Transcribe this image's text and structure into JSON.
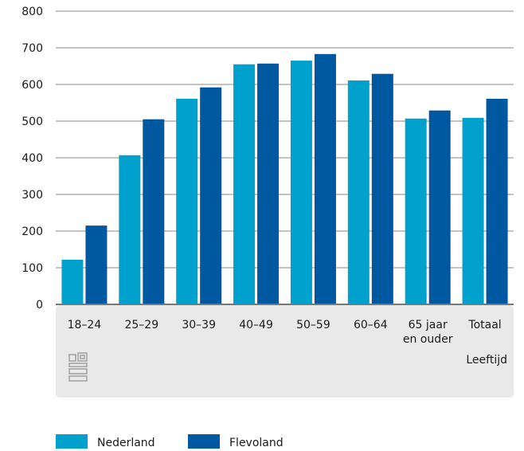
{
  "chart_data": {
    "type": "bar",
    "categories": [
      [
        "18–24"
      ],
      [
        "25–29"
      ],
      [
        "30–39"
      ],
      [
        "40–49"
      ],
      [
        "50–59"
      ],
      [
        "60–64"
      ],
      [
        "65 jaar",
        "en ouder"
      ],
      [
        "Totaal"
      ]
    ],
    "series": [
      {
        "name": "Nederland",
        "color": "#00a1cd",
        "values": [
          122,
          407,
          561,
          655,
          665,
          611,
          507,
          509
        ]
      },
      {
        "name": "Flevoland",
        "color": "#0058a0",
        "values": [
          215,
          505,
          592,
          657,
          683,
          629,
          529,
          561
        ]
      }
    ],
    "xlabel": "Leeftijd",
    "ylabel": "",
    "ylim": [
      0,
      800
    ],
    "yticks": [
      0,
      100,
      200,
      300,
      400,
      500,
      600,
      700,
      800
    ],
    "grid": true,
    "legend": "bottom-left",
    "logo": "cbs-logo"
  }
}
